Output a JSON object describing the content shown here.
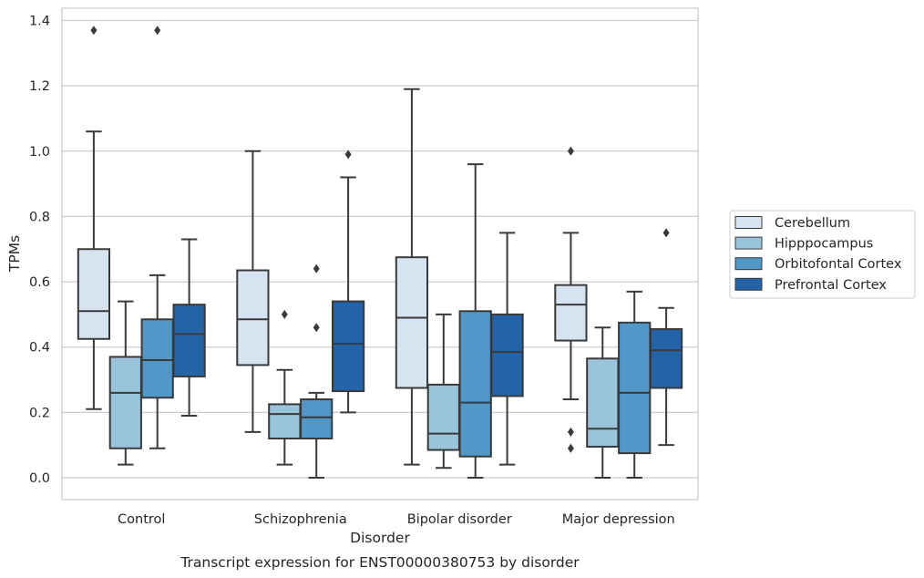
{
  "chart_data": {
    "type": "box",
    "xlabel": "Disorder",
    "ylabel": "TPMs",
    "caption": "Transcript expression for ENST00000380753 by disorder",
    "categories": [
      "Control",
      "Schizophrenia",
      "Bipolar disorder",
      "Major depression"
    ],
    "y_ticks": [
      "0.0",
      "0.2",
      "0.4",
      "0.6",
      "0.8",
      "1.0",
      "1.2",
      "1.4"
    ],
    "ylim": [
      -0.065,
      1.445
    ],
    "grid": "horizontal",
    "legend_position": "right",
    "series": [
      {
        "name": "Cerebellum",
        "color": "#d6e4f2",
        "boxes": [
          {
            "whislo": 0.21,
            "q1": 0.425,
            "med": 0.51,
            "q3": 0.7,
            "whishi": 1.06,
            "fliers": [
              1.37
            ]
          },
          {
            "whislo": 0.14,
            "q1": 0.345,
            "med": 0.485,
            "q3": 0.635,
            "whishi": 1.0,
            "fliers": []
          },
          {
            "whislo": 0.04,
            "q1": 0.275,
            "med": 0.49,
            "q3": 0.675,
            "whishi": 1.19,
            "fliers": []
          },
          {
            "whislo": 0.24,
            "q1": 0.42,
            "med": 0.53,
            "q3": 0.59,
            "whishi": 0.75,
            "fliers": [
              1.0,
              0.14,
              0.09
            ]
          }
        ]
      },
      {
        "name": "Hipppocampus",
        "color": "#9ac3dc",
        "boxes": [
          {
            "whislo": 0.04,
            "q1": 0.09,
            "med": 0.26,
            "q3": 0.37,
            "whishi": 0.54,
            "fliers": []
          },
          {
            "whislo": 0.04,
            "q1": 0.12,
            "med": 0.195,
            "q3": 0.225,
            "whishi": 0.33,
            "fliers": [
              0.5
            ]
          },
          {
            "whislo": 0.03,
            "q1": 0.085,
            "med": 0.135,
            "q3": 0.285,
            "whishi": 0.5,
            "fliers": []
          },
          {
            "whislo": 0.0,
            "q1": 0.095,
            "med": 0.15,
            "q3": 0.365,
            "whishi": 0.46,
            "fliers": []
          }
        ]
      },
      {
        "name": "Orbitofontal Cortex",
        "color": "#5197c8",
        "boxes": [
          {
            "whislo": 0.09,
            "q1": 0.245,
            "med": 0.36,
            "q3": 0.485,
            "whishi": 0.62,
            "fliers": [
              1.37
            ]
          },
          {
            "whislo": 0.0,
            "q1": 0.12,
            "med": 0.185,
            "q3": 0.24,
            "whishi": 0.26,
            "fliers": [
              0.64,
              0.46
            ]
          },
          {
            "whislo": 0.0,
            "q1": 0.065,
            "med": 0.23,
            "q3": 0.51,
            "whishi": 0.96,
            "fliers": []
          },
          {
            "whislo": 0.0,
            "q1": 0.075,
            "med": 0.26,
            "q3": 0.475,
            "whishi": 0.57,
            "fliers": []
          }
        ]
      },
      {
        "name": "Prefrontal Cortex",
        "color": "#2563a8",
        "boxes": [
          {
            "whislo": 0.19,
            "q1": 0.31,
            "med": 0.44,
            "q3": 0.53,
            "whishi": 0.73,
            "fliers": []
          },
          {
            "whislo": 0.2,
            "q1": 0.265,
            "med": 0.41,
            "q3": 0.54,
            "whishi": 0.92,
            "fliers": [
              0.99
            ]
          },
          {
            "whislo": 0.04,
            "q1": 0.25,
            "med": 0.385,
            "q3": 0.5,
            "whishi": 0.75,
            "fliers": []
          },
          {
            "whislo": 0.1,
            "q1": 0.275,
            "med": 0.39,
            "q3": 0.455,
            "whishi": 0.52,
            "fliers": [
              0.75
            ]
          }
        ]
      }
    ]
  }
}
